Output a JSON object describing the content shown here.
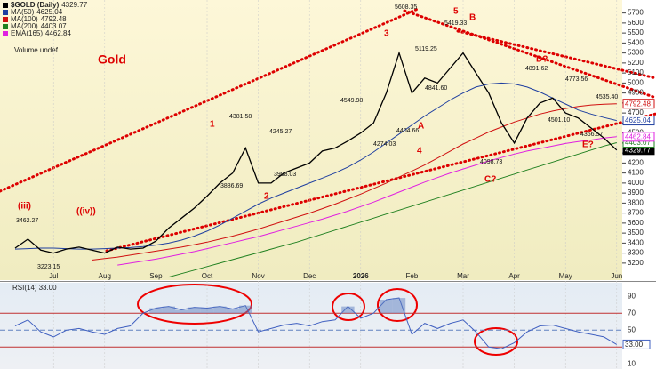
{
  "chart_data": {
    "type": "line",
    "title": "$GOLD (Daily)",
    "subtitle": "Volume undef",
    "label": "Gold",
    "categories": [
      null,
      null,
      null,
      "Jul",
      null,
      null,
      null,
      "Aug",
      null,
      null,
      null,
      "Sep",
      null,
      null,
      null,
      "Oct",
      null,
      null,
      null,
      "Nov",
      null,
      null,
      null,
      "Dec",
      null,
      null,
      null,
      "2026",
      null,
      null,
      null,
      "Feb",
      null,
      null,
      null,
      "Mar",
      null,
      null,
      null,
      "Apr",
      null,
      null,
      null,
      "May",
      null,
      null,
      null,
      "Jun"
    ],
    "ylim": [
      3030,
      5830
    ],
    "yticks": [
      3200,
      3300,
      3400,
      3500,
      3600,
      3700,
      3800,
      3900,
      4000,
      4100,
      4200,
      4300,
      4400,
      4500,
      4600,
      4700,
      4800,
      4900,
      5000,
      5100,
      5200,
      5300,
      5400,
      5500,
      5600,
      5700
    ],
    "series": [
      {
        "name": "$GOLD (Daily)",
        "color": "#000000",
        "values": [
          3350,
          3440,
          3330,
          3300,
          3340,
          3360,
          3330,
          3300,
          3360,
          3340,
          3350,
          3420,
          3550,
          3650,
          3750,
          3870,
          4000,
          4100,
          4350,
          4000,
          4000,
          4100,
          4150,
          4200,
          4320,
          4350,
          4420,
          4500,
          4600,
          4900,
          5300,
          4900,
          5050,
          5000,
          5150,
          5300,
          5100,
          4900,
          4600,
          4400,
          4650,
          4800,
          4850,
          4700,
          4650,
          4550,
          4450,
          4329.77
        ]
      },
      {
        "name": "MA(50)",
        "color": "#1f3fa0",
        "values": [
          3340,
          3345,
          3350,
          3350,
          3345,
          3340,
          3340,
          3345,
          3350,
          3355,
          3365,
          3380,
          3400,
          3430,
          3470,
          3520,
          3580,
          3650,
          3720,
          3790,
          3850,
          3900,
          3950,
          4000,
          4050,
          4100,
          4160,
          4230,
          4310,
          4400,
          4490,
          4580,
          4670,
          4750,
          4830,
          4900,
          4960,
          4990,
          5000,
          4990,
          4960,
          4910,
          4850,
          4790,
          4730,
          4690,
          4655,
          4625.04
        ]
      },
      {
        "name": "MA(100)",
        "color": "#d01010",
        "values": [
          null,
          null,
          null,
          null,
          null,
          null,
          3230,
          3245,
          3260,
          3280,
          3300,
          3320,
          3340,
          3360,
          3385,
          3410,
          3440,
          3470,
          3505,
          3540,
          3580,
          3620,
          3660,
          3700,
          3745,
          3790,
          3840,
          3890,
          3945,
          4000,
          4060,
          4120,
          4180,
          4250,
          4320,
          4390,
          4450,
          4510,
          4560,
          4610,
          4650,
          4690,
          4720,
          4745,
          4765,
          4780,
          4788,
          4792.48
        ]
      },
      {
        "name": "MA(200)",
        "color": "#208020",
        "values": [
          null,
          null,
          null,
          null,
          null,
          null,
          null,
          null,
          null,
          null,
          null,
          null,
          3060,
          3095,
          3130,
          3165,
          3200,
          3235,
          3270,
          3305,
          3340,
          3375,
          3410,
          3450,
          3490,
          3530,
          3570,
          3610,
          3650,
          3690,
          3730,
          3770,
          3810,
          3850,
          3890,
          3930,
          3970,
          4010,
          4050,
          4090,
          4130,
          4170,
          4210,
          4250,
          4290,
          4330,
          4370,
          4403.07
        ]
      },
      {
        "name": "EMA(165)",
        "color": "#e020e0",
        "values": [
          null,
          null,
          null,
          null,
          null,
          null,
          null,
          null,
          3180,
          3200,
          3220,
          3240,
          3265,
          3290,
          3315,
          3345,
          3375,
          3405,
          3435,
          3465,
          3500,
          3535,
          3570,
          3605,
          3640,
          3680,
          3720,
          3765,
          3810,
          3860,
          3910,
          3960,
          4010,
          4055,
          4100,
          4140,
          4180,
          4220,
          4255,
          4290,
          4320,
          4345,
          4370,
          4395,
          4415,
          4430,
          4450,
          4462.84
        ]
      }
    ],
    "price_labels": [
      "3462.27",
      "3223.15",
      "4381.58",
      "3886.69",
      "4245.27",
      "3998.03",
      "4549.98",
      "4274.03",
      "5608.35",
      "5119.25",
      "4841.60",
      "4404.66",
      "5419.33",
      "4098.73",
      "4891.62",
      "4773.56",
      "4501.10",
      "4535.40",
      "4366.57"
    ],
    "wave_labels": [
      "(iii)",
      "((iv))",
      "1",
      "2",
      "3",
      "4",
      "5",
      "A",
      "B",
      "C?",
      "D?",
      "E?"
    ],
    "rsi": {
      "name": "RSI(14)",
      "color": "#4060c0",
      "ylim": [
        4,
        106
      ],
      "yticks": [
        10,
        30,
        50,
        70,
        90
      ],
      "values": [
        55,
        62,
        48,
        42,
        50,
        52,
        48,
        45,
        52,
        55,
        70,
        76,
        78,
        74,
        77,
        76,
        78,
        75,
        79,
        48,
        52,
        56,
        58,
        55,
        60,
        62,
        78,
        64,
        70,
        86,
        88,
        45,
        58,
        52,
        58,
        62,
        48,
        30,
        28,
        35,
        48,
        55,
        56,
        52,
        48,
        45,
        42,
        33.0
      ],
      "value_labels": [
        null,
        null,
        null,
        null,
        null,
        null,
        null,
        null,
        null,
        null,
        null,
        null,
        null,
        null,
        null,
        null,
        null,
        null,
        null,
        null,
        null,
        null,
        null,
        null,
        null,
        null,
        null,
        null,
        null,
        null,
        null,
        null,
        null,
        null,
        null,
        null,
        null,
        null,
        null,
        null,
        null,
        null,
        null,
        null,
        null,
        null,
        null,
        "33.00"
      ]
    }
  }
}
